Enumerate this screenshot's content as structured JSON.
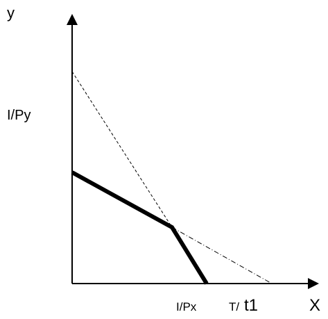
{
  "axes": {
    "y_label": "y",
    "x_label": "X"
  },
  "labels": {
    "i_py": "I/Py",
    "i_px": "I/Px",
    "t_prefix": "T/",
    "t_suffix": "t1"
  }
}
